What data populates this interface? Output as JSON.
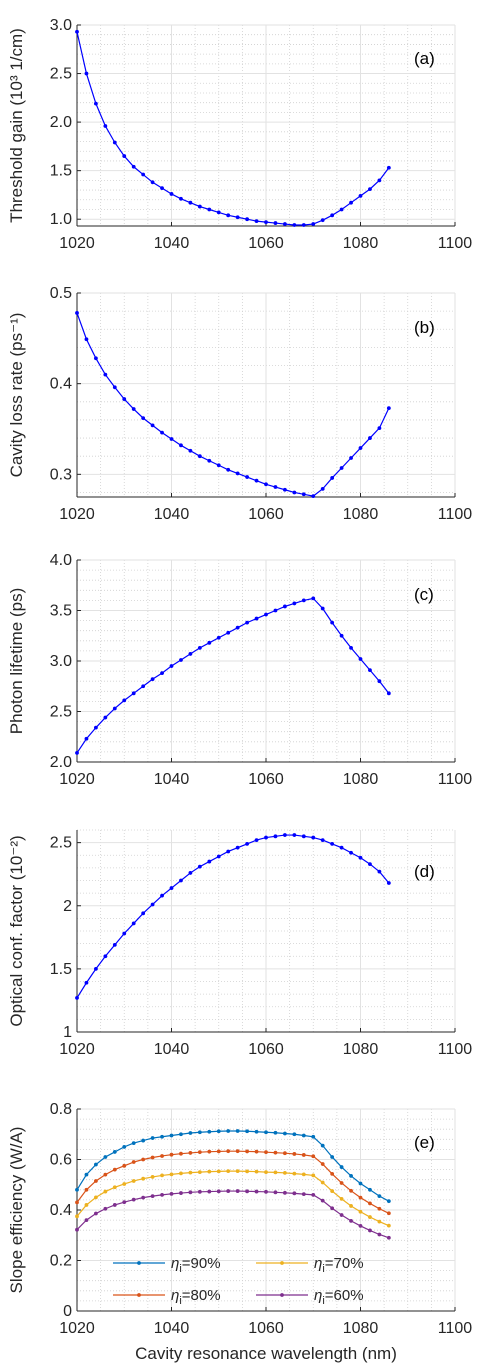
{
  "chart_data": [
    {
      "type": "line",
      "panel_label": "(a)",
      "ylabel": "Threshold gain (10³ 1/cm)",
      "xlabel": "",
      "xlim": [
        1020,
        1100
      ],
      "ylim": [
        0.93,
        3.0
      ],
      "xticks": [
        1020,
        1040,
        1060,
        1080,
        1100
      ],
      "yticks": [
        1.0,
        1.5,
        2.0,
        2.5,
        3.0
      ],
      "ytick_labels": [
        "1.0",
        "1.5",
        "2.0",
        "2.5",
        "3.0"
      ],
      "grid": true,
      "series": [
        {
          "color": "#0000ff",
          "x": [
            1020,
            1022,
            1024,
            1026,
            1028,
            1030,
            1032,
            1034,
            1036,
            1038,
            1040,
            1042,
            1044,
            1046,
            1048,
            1050,
            1052,
            1054,
            1056,
            1058,
            1060,
            1062,
            1064,
            1066,
            1068,
            1070,
            1072,
            1074,
            1076,
            1078,
            1080,
            1082,
            1084,
            1086
          ],
          "y": [
            2.93,
            2.5,
            2.19,
            1.96,
            1.79,
            1.65,
            1.54,
            1.46,
            1.38,
            1.32,
            1.26,
            1.21,
            1.17,
            1.13,
            1.1,
            1.07,
            1.04,
            1.02,
            1.0,
            0.98,
            0.97,
            0.96,
            0.95,
            0.94,
            0.94,
            0.95,
            0.99,
            1.04,
            1.1,
            1.17,
            1.24,
            1.31,
            1.4,
            1.53
          ]
        }
      ]
    },
    {
      "type": "line",
      "panel_label": "(b)",
      "ylabel": "Cavity loss rate (ps⁻¹)",
      "xlabel": "",
      "xlim": [
        1020,
        1100
      ],
      "ylim": [
        0.275,
        0.5
      ],
      "xticks": [
        1020,
        1040,
        1060,
        1080,
        1100
      ],
      "yticks": [
        0.3,
        0.4,
        0.5
      ],
      "ytick_labels": [
        "0.3",
        "0.4",
        "0.5"
      ],
      "grid": true,
      "series": [
        {
          "color": "#0000ff",
          "x": [
            1020,
            1022,
            1024,
            1026,
            1028,
            1030,
            1032,
            1034,
            1036,
            1038,
            1040,
            1042,
            1044,
            1046,
            1048,
            1050,
            1052,
            1054,
            1056,
            1058,
            1060,
            1062,
            1064,
            1066,
            1068,
            1070,
            1072,
            1074,
            1076,
            1078,
            1080,
            1082,
            1084,
            1086
          ],
          "y": [
            0.478,
            0.449,
            0.428,
            0.41,
            0.396,
            0.383,
            0.372,
            0.362,
            0.354,
            0.346,
            0.339,
            0.332,
            0.326,
            0.32,
            0.315,
            0.31,
            0.305,
            0.301,
            0.297,
            0.293,
            0.289,
            0.286,
            0.283,
            0.28,
            0.278,
            0.276,
            0.284,
            0.296,
            0.307,
            0.318,
            0.329,
            0.34,
            0.351,
            0.373
          ]
        }
      ]
    },
    {
      "type": "line",
      "panel_label": "(c)",
      "ylabel": "Photon lifetime (ps)",
      "xlabel": "",
      "xlim": [
        1020,
        1100
      ],
      "ylim": [
        2.0,
        4.0
      ],
      "xticks": [
        1020,
        1040,
        1060,
        1080,
        1100
      ],
      "yticks": [
        2.0,
        2.5,
        3.0,
        3.5,
        4.0
      ],
      "ytick_labels": [
        "2.0",
        "2.5",
        "3.0",
        "3.5",
        "4.0"
      ],
      "grid": true,
      "series": [
        {
          "color": "#0000ff",
          "x": [
            1020,
            1022,
            1024,
            1026,
            1028,
            1030,
            1032,
            1034,
            1036,
            1038,
            1040,
            1042,
            1044,
            1046,
            1048,
            1050,
            1052,
            1054,
            1056,
            1058,
            1060,
            1062,
            1064,
            1066,
            1068,
            1070,
            1072,
            1074,
            1076,
            1078,
            1080,
            1082,
            1084,
            1086
          ],
          "y": [
            2.09,
            2.23,
            2.34,
            2.44,
            2.53,
            2.61,
            2.68,
            2.75,
            2.82,
            2.88,
            2.95,
            3.01,
            3.07,
            3.13,
            3.18,
            3.23,
            3.28,
            3.33,
            3.38,
            3.42,
            3.46,
            3.5,
            3.54,
            3.57,
            3.6,
            3.62,
            3.52,
            3.38,
            3.25,
            3.13,
            3.02,
            2.91,
            2.8,
            2.68
          ]
        }
      ]
    },
    {
      "type": "line",
      "panel_label": "(d)",
      "ylabel": "Optical conf. factor (10⁻²)",
      "xlabel": "",
      "xlim": [
        1020,
        1100
      ],
      "ylim": [
        1.0,
        2.6
      ],
      "xticks": [
        1020,
        1040,
        1060,
        1080,
        1100
      ],
      "yticks": [
        1.0,
        1.5,
        2.0,
        2.5
      ],
      "ytick_labels": [
        "1",
        "1.5",
        "2",
        "2.5"
      ],
      "grid": true,
      "series": [
        {
          "color": "#0000ff",
          "x": [
            1020,
            1022,
            1024,
            1026,
            1028,
            1030,
            1032,
            1034,
            1036,
            1038,
            1040,
            1042,
            1044,
            1046,
            1048,
            1050,
            1052,
            1054,
            1056,
            1058,
            1060,
            1062,
            1064,
            1066,
            1068,
            1070,
            1072,
            1074,
            1076,
            1078,
            1080,
            1082,
            1084,
            1086
          ],
          "y": [
            1.27,
            1.39,
            1.5,
            1.6,
            1.69,
            1.78,
            1.86,
            1.94,
            2.01,
            2.08,
            2.14,
            2.2,
            2.26,
            2.31,
            2.35,
            2.39,
            2.43,
            2.46,
            2.49,
            2.52,
            2.54,
            2.55,
            2.56,
            2.56,
            2.55,
            2.54,
            2.52,
            2.49,
            2.46,
            2.42,
            2.38,
            2.33,
            2.27,
            2.18
          ]
        }
      ]
    },
    {
      "type": "line",
      "panel_label": "(e)",
      "ylabel": "Slope efficiency (W/A)",
      "xlabel": "Cavity resonance wavelength (nm)",
      "xlim": [
        1020,
        1100
      ],
      "ylim": [
        0.0,
        0.8
      ],
      "xticks": [
        1020,
        1040,
        1060,
        1080,
        1100
      ],
      "yticks": [
        0.0,
        0.2,
        0.4,
        0.6,
        0.8
      ],
      "ytick_labels": [
        "0",
        "0.2",
        "0.4",
        "0.6",
        "0.8"
      ],
      "grid": true,
      "legend": "bottom-center",
      "series": [
        {
          "name_prefix": "η",
          "name_sub": "i",
          "name_suffix": "=90%",
          "color": "#0072bd",
          "x": [
            1020,
            1022,
            1024,
            1026,
            1028,
            1030,
            1032,
            1034,
            1036,
            1038,
            1040,
            1042,
            1044,
            1046,
            1048,
            1050,
            1052,
            1054,
            1056,
            1058,
            1060,
            1062,
            1064,
            1066,
            1068,
            1070,
            1072,
            1074,
            1076,
            1078,
            1080,
            1082,
            1084,
            1086
          ],
          "y": [
            0.48,
            0.54,
            0.58,
            0.61,
            0.63,
            0.65,
            0.665,
            0.675,
            0.685,
            0.69,
            0.695,
            0.7,
            0.705,
            0.708,
            0.71,
            0.712,
            0.713,
            0.713,
            0.712,
            0.71,
            0.708,
            0.706,
            0.703,
            0.7,
            0.695,
            0.69,
            0.655,
            0.61,
            0.57,
            0.535,
            0.505,
            0.48,
            0.455,
            0.435
          ]
        },
        {
          "name_prefix": "η",
          "name_sub": "i",
          "name_suffix": "=80%",
          "color": "#d95319",
          "x": [
            1020,
            1022,
            1024,
            1026,
            1028,
            1030,
            1032,
            1034,
            1036,
            1038,
            1040,
            1042,
            1044,
            1046,
            1048,
            1050,
            1052,
            1054,
            1056,
            1058,
            1060,
            1062,
            1064,
            1066,
            1068,
            1070,
            1072,
            1074,
            1076,
            1078,
            1080,
            1082,
            1084,
            1086
          ],
          "y": [
            0.43,
            0.48,
            0.515,
            0.54,
            0.56,
            0.575,
            0.59,
            0.6,
            0.608,
            0.614,
            0.619,
            0.623,
            0.626,
            0.629,
            0.631,
            0.632,
            0.633,
            0.633,
            0.632,
            0.631,
            0.629,
            0.627,
            0.625,
            0.622,
            0.618,
            0.613,
            0.582,
            0.543,
            0.507,
            0.476,
            0.449,
            0.426,
            0.405,
            0.387
          ]
        },
        {
          "name_prefix": "η",
          "name_sub": "i",
          "name_suffix": "=70%",
          "color": "#edb120",
          "x": [
            1020,
            1022,
            1024,
            1026,
            1028,
            1030,
            1032,
            1034,
            1036,
            1038,
            1040,
            1042,
            1044,
            1046,
            1048,
            1050,
            1052,
            1054,
            1056,
            1058,
            1060,
            1062,
            1064,
            1066,
            1068,
            1070,
            1072,
            1074,
            1076,
            1078,
            1080,
            1082,
            1084,
            1086
          ],
          "y": [
            0.375,
            0.42,
            0.45,
            0.473,
            0.49,
            0.503,
            0.515,
            0.524,
            0.531,
            0.537,
            0.541,
            0.545,
            0.548,
            0.55,
            0.552,
            0.553,
            0.554,
            0.554,
            0.553,
            0.552,
            0.55,
            0.549,
            0.547,
            0.544,
            0.541,
            0.537,
            0.509,
            0.475,
            0.444,
            0.416,
            0.393,
            0.372,
            0.354,
            0.338
          ]
        },
        {
          "name_prefix": "η",
          "name_sub": "i",
          "name_suffix": "=60%",
          "color": "#7e2f8e",
          "x": [
            1020,
            1022,
            1024,
            1026,
            1028,
            1030,
            1032,
            1034,
            1036,
            1038,
            1040,
            1042,
            1044,
            1046,
            1048,
            1050,
            1052,
            1054,
            1056,
            1058,
            1060,
            1062,
            1064,
            1066,
            1068,
            1070,
            1072,
            1074,
            1076,
            1078,
            1080,
            1082,
            1084,
            1086
          ],
          "y": [
            0.322,
            0.36,
            0.386,
            0.405,
            0.42,
            0.431,
            0.441,
            0.449,
            0.455,
            0.46,
            0.464,
            0.467,
            0.47,
            0.472,
            0.473,
            0.474,
            0.475,
            0.475,
            0.474,
            0.473,
            0.472,
            0.47,
            0.468,
            0.466,
            0.463,
            0.46,
            0.437,
            0.407,
            0.38,
            0.357,
            0.337,
            0.319,
            0.303,
            0.29
          ]
        }
      ]
    }
  ]
}
